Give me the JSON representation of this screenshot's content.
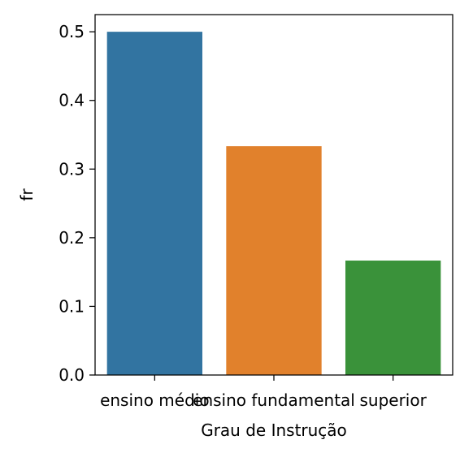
{
  "chart_data": {
    "type": "bar",
    "title": "",
    "xlabel": "Grau de Instrução",
    "ylabel": "fr",
    "categories": [
      "ensino médio",
      "ensino fundamental",
      "superior"
    ],
    "values": [
      0.5,
      0.3333,
      0.1667
    ],
    "colors": [
      "#3274a1",
      "#e1812c",
      "#3a923a"
    ],
    "ylim": [
      0,
      0.525
    ],
    "yticks": [
      0.0,
      0.1,
      0.2,
      0.3,
      0.4,
      0.5
    ],
    "ytick_labels": [
      "0.0",
      "0.1",
      "0.2",
      "0.3",
      "0.4",
      "0.5"
    ],
    "grid": false,
    "legend": "none"
  }
}
